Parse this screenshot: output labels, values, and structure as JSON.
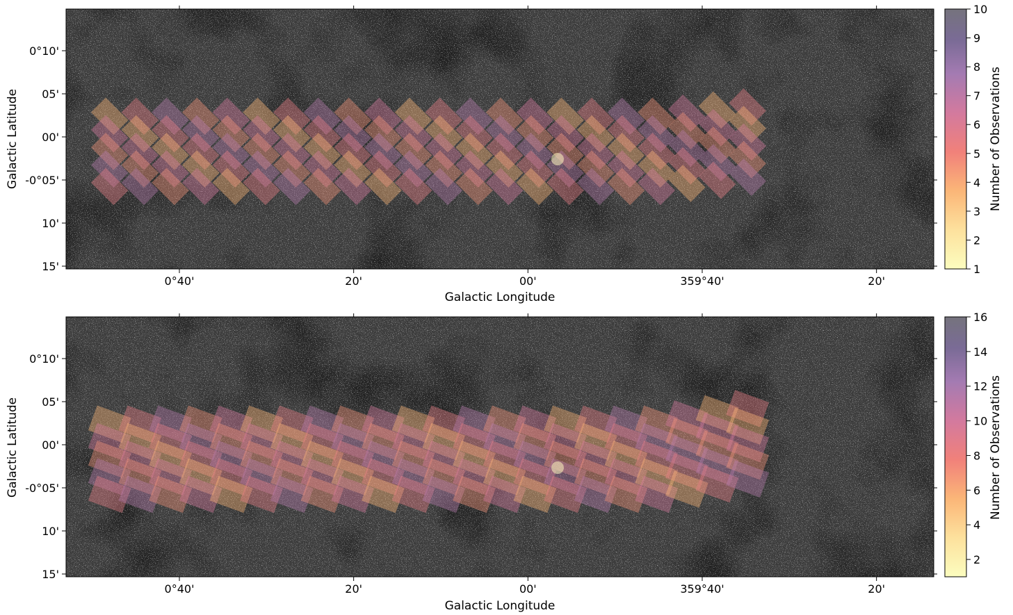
{
  "colors": {
    "cmap_low": "#fcfdbf",
    "cmap_high": "#000004",
    "background_sky": "#3a3a3a"
  },
  "chart_data": [
    {
      "type": "heatmap",
      "title": "",
      "xlabel": "Galactic Longitude",
      "ylabel": "Galactic Latitude",
      "xticks": [
        "0°40'",
        "20'",
        "00'",
        "359°40'",
        "20'"
      ],
      "yticks": [
        "0°10'",
        "05'",
        "00'",
        "-0°05'",
        "10'",
        "15'"
      ],
      "colorbar": {
        "label": "Number of Observations",
        "range": [
          1,
          10
        ],
        "ticks": [
          "1",
          "2",
          "3",
          "4",
          "5",
          "6",
          "7",
          "8",
          "9",
          "10"
        ],
        "colormap": "inferno_r"
      },
      "mosaic": {
        "columns": 22,
        "rows_per_column": 5,
        "tile_rotation_deg": 45,
        "l_start_deg": 0.8,
        "l_end_deg": -0.42,
        "b_center_deg": -0.03,
        "coverage_range": [
          1,
          10
        ]
      }
    },
    {
      "type": "heatmap",
      "title": "",
      "xlabel": "Galactic Longitude",
      "ylabel": "Galactic Latitude",
      "xticks": [
        "0°40'",
        "20'",
        "00'",
        "359°40'",
        "20'"
      ],
      "yticks": [
        "0°10'",
        "05'",
        "00'",
        "-0°05'",
        "10'",
        "15'"
      ],
      "colorbar": {
        "label": "Number of Observations",
        "range": [
          1,
          16
        ],
        "ticks": [
          "2",
          "4",
          "6",
          "8",
          "10",
          "12",
          "14",
          "16"
        ],
        "colormap": "inferno_r"
      },
      "mosaic": {
        "columns": 22,
        "rows_per_column": 5,
        "tile_rotation_deg": 20,
        "l_start_deg": 0.8,
        "l_end_deg": -0.42,
        "b_center_deg": -0.03,
        "coverage_range": [
          1,
          16
        ]
      }
    }
  ]
}
